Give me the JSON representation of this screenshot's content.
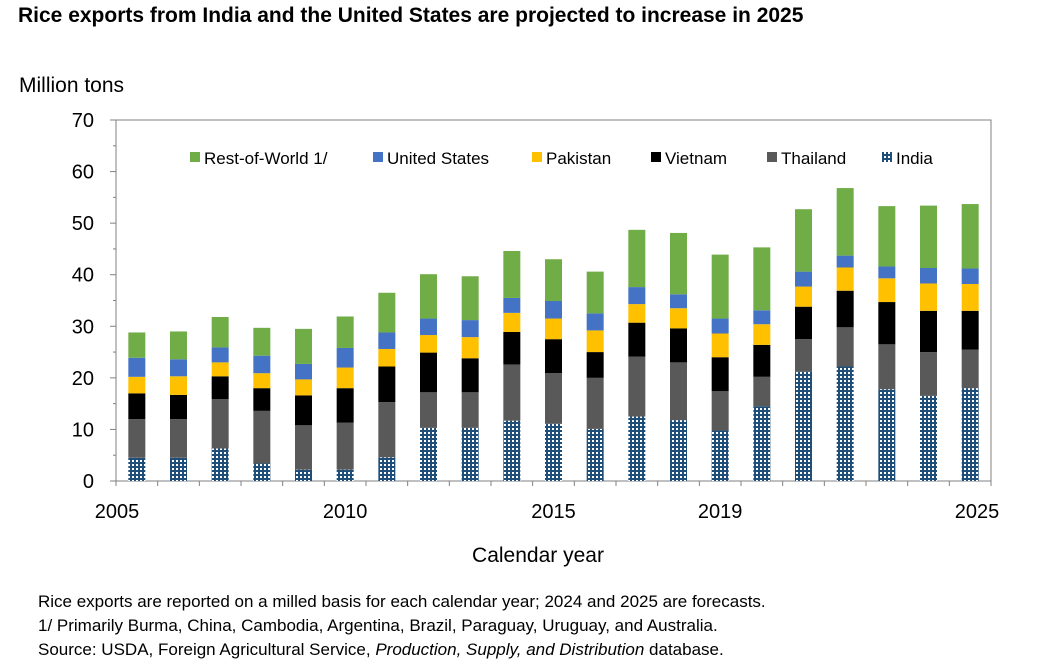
{
  "title": "Rice exports from India and the United States are projected to increase in 2025",
  "notes": {
    "line1": "Rice exports are reported on a milled basis for each calendar year; 2024 and 2025 are forecasts.",
    "line2": "1/ Primarily Burma, China, Cambodia, Argentina, Brazil, Paraguay, Uruguay, and Australia.",
    "line3_prefix": "Source: USDA, Foreign Agricultural Service, ",
    "line3_italic": "Production, Supply, and Distribution",
    "line3_suffix": " database."
  },
  "colors": {
    "india": "#1f4e79",
    "thailand": "#595959",
    "vietnam": "#000000",
    "pakistan": "#ffc000",
    "us": "#4472c4",
    "row": "#70ad47"
  },
  "chart_data": {
    "type": "bar",
    "stacked": true,
    "title": "Rice exports from India and the United States are projected to increase in 2025",
    "xlabel": "Calendar year",
    "ylabel": "Million tons",
    "ylim": [
      0,
      70
    ],
    "yticks": [
      0,
      10,
      20,
      30,
      40,
      50,
      60,
      70
    ],
    "x_tick_labels": [
      "2005",
      "2010",
      "2015",
      "2019",
      "2025"
    ],
    "x_tick_years": [
      2005,
      2010,
      2015,
      2019,
      2025
    ],
    "grid": false,
    "legend_position": "top",
    "categories": [
      2005,
      2006,
      2007,
      2008,
      2009,
      2010,
      2011,
      2012,
      2013,
      2014,
      2015,
      2016,
      2017,
      2018,
      2019,
      2020,
      2021,
      2022,
      2023,
      2024,
      2025
    ],
    "series": [
      {
        "name": "India",
        "key": "india",
        "pattern": true,
        "values": [
          4.5,
          4.5,
          6.3,
          3.4,
          2.2,
          2.2,
          4.6,
          10.3,
          10.3,
          11.7,
          11.1,
          10.1,
          12.5,
          11.8,
          9.8,
          14.5,
          21.2,
          22.2,
          17.8,
          16.5,
          18.0
        ]
      },
      {
        "name": "Thailand",
        "key": "thailand",
        "values": [
          7.5,
          7.5,
          9.6,
          10.2,
          8.6,
          9.1,
          10.7,
          6.9,
          6.9,
          10.9,
          9.8,
          9.9,
          11.6,
          11.2,
          7.6,
          5.7,
          6.3,
          7.6,
          8.7,
          8.5,
          7.5
        ]
      },
      {
        "name": "Vietnam",
        "key": "vietnam",
        "values": [
          5.0,
          4.7,
          4.4,
          4.4,
          5.8,
          6.7,
          6.9,
          7.7,
          6.6,
          6.3,
          6.6,
          5.0,
          6.6,
          6.6,
          6.6,
          6.2,
          6.3,
          7.1,
          8.2,
          8.0,
          7.5
        ]
      },
      {
        "name": "Pakistan",
        "key": "pakistan",
        "values": [
          3.2,
          3.6,
          2.7,
          2.9,
          3.1,
          4.0,
          3.4,
          3.4,
          4.1,
          3.7,
          4.0,
          4.2,
          3.6,
          3.9,
          4.6,
          4.0,
          3.9,
          4.5,
          4.6,
          5.3,
          5.2
        ]
      },
      {
        "name": "United States",
        "key": "us",
        "values": [
          3.7,
          3.3,
          2.9,
          3.4,
          3.0,
          3.8,
          3.2,
          3.2,
          3.3,
          2.9,
          3.4,
          3.3,
          3.3,
          2.7,
          2.9,
          2.7,
          2.9,
          2.3,
          2.3,
          3.0,
          3.0
        ]
      },
      {
        "name": "Rest-of-World 1/",
        "key": "row",
        "values": [
          4.9,
          5.4,
          5.9,
          5.4,
          6.8,
          6.1,
          7.7,
          8.6,
          8.5,
          9.1,
          8.1,
          8.1,
          11.1,
          11.9,
          12.4,
          12.2,
          12.1,
          13.1,
          11.7,
          12.1,
          12.5
        ]
      }
    ],
    "legend_order": [
      "Rest-of-World 1/",
      "United States",
      "Pakistan",
      "Vietnam",
      "Thailand",
      "India"
    ]
  }
}
